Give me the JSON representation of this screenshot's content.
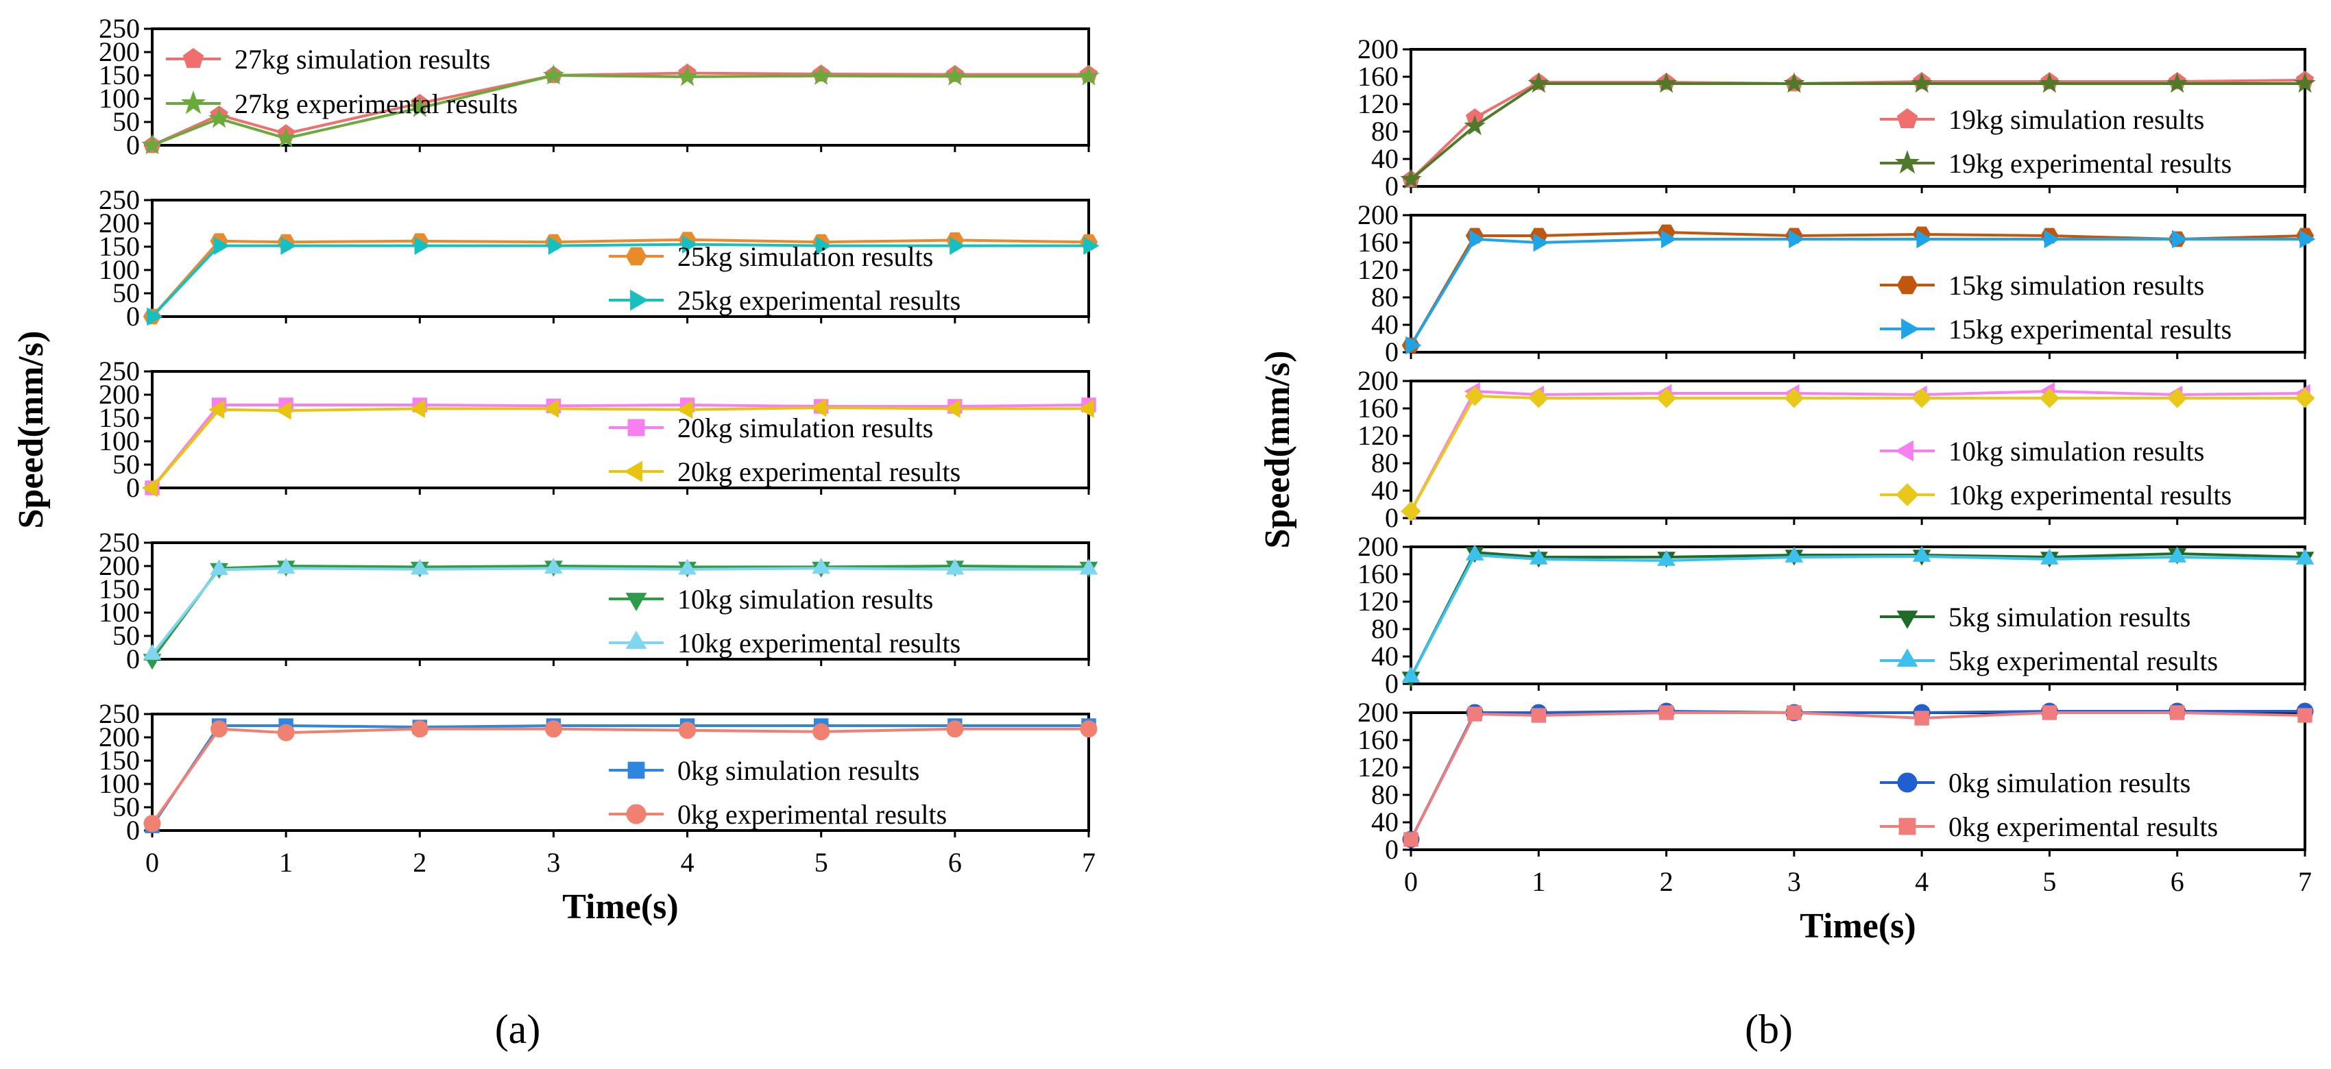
{
  "figure_labels": {
    "a": "(a)",
    "b": "(b)"
  },
  "chart_data": [
    {
      "id": "a",
      "type": "line",
      "caption": "(a)",
      "xlabel": "Time(s)",
      "ylabel": "Speed(mm/s)",
      "xlim": [
        0,
        7
      ],
      "x_ticks": [
        "0",
        "1",
        "2",
        "3",
        "4",
        "5",
        "6",
        "7"
      ],
      "x": [
        0,
        0.5,
        1,
        2,
        3,
        4,
        5,
        6,
        7
      ],
      "panels": [
        {
          "ylim": [
            0,
            250
          ],
          "y_ticks": [
            "0",
            "50",
            "100",
            "150",
            "200",
            "250"
          ],
          "legend_position": "top-left",
          "series": [
            {
              "name": "27kg simulation results",
              "color": "#ef6f6f",
              "marker": "pentagon",
              "values": [
                0,
                65,
                25,
                90,
                150,
                155,
                153,
                152,
                152
              ]
            },
            {
              "name": "27kg experimental results",
              "color": "#6aaa3a",
              "marker": "star",
              "values": [
                0,
                57,
                15,
                80,
                150,
                147,
                149,
                148,
                148
              ]
            }
          ]
        },
        {
          "ylim": [
            0,
            250
          ],
          "y_ticks": [
            "0",
            "50",
            "100",
            "150",
            "200",
            "250"
          ],
          "legend_position": "bottom-right",
          "series": [
            {
              "name": "25kg simulation results",
              "color": "#e98a2b",
              "marker": "hexagon",
              "values": [
                0,
                162,
                160,
                162,
                160,
                165,
                160,
                164,
                160
              ]
            },
            {
              "name": "25kg experimental results",
              "color": "#17c0c0",
              "marker": "triangle-right",
              "values": [
                0,
                152,
                152,
                152,
                152,
                155,
                152,
                152,
                152
              ]
            }
          ]
        },
        {
          "ylim": [
            0,
            250
          ],
          "y_ticks": [
            "0",
            "50",
            "100",
            "150",
            "200",
            "250"
          ],
          "legend_position": "bottom-right",
          "series": [
            {
              "name": "20kg simulation results",
              "color": "#f77ff0",
              "marker": "square",
              "values": [
                0,
                178,
                178,
                178,
                176,
                178,
                175,
                175,
                178
              ]
            },
            {
              "name": "20kg experimental results",
              "color": "#e6c40f",
              "marker": "triangle-left",
              "values": [
                0,
                168,
                166,
                170,
                170,
                168,
                172,
                170,
                170
              ]
            }
          ]
        },
        {
          "ylim": [
            0,
            250
          ],
          "y_ticks": [
            "0",
            "50",
            "100",
            "150",
            "200",
            "250"
          ],
          "legend_position": "bottom-right",
          "series": [
            {
              "name": "10kg simulation results",
              "color": "#2e9b4a",
              "marker": "triangle-down",
              "values": [
                0,
                195,
                200,
                198,
                200,
                198,
                198,
                200,
                198
              ]
            },
            {
              "name": "10kg experimental results",
              "color": "#7fd6ee",
              "marker": "triangle-up",
              "values": [
                10,
                192,
                195,
                193,
                195,
                193,
                195,
                193,
                193
              ]
            }
          ]
        },
        {
          "ylim": [
            0,
            250
          ],
          "y_ticks": [
            "0",
            "50",
            "100",
            "150",
            "200",
            "250"
          ],
          "legend_position": "bottom-right",
          "series": [
            {
              "name": "0kg simulation results",
              "color": "#2e86de",
              "marker": "square",
              "values": [
                10,
                225,
                225,
                222,
                225,
                225,
                225,
                225,
                225
              ]
            },
            {
              "name": "0kg experimental results",
              "color": "#f08070",
              "marker": "circle",
              "values": [
                15,
                218,
                210,
                218,
                218,
                215,
                212,
                218,
                218
              ]
            }
          ]
        }
      ]
    },
    {
      "id": "b",
      "type": "line",
      "caption": "(b)",
      "xlabel": "Time(s)",
      "ylabel": "Speed(mm/s)",
      "xlim": [
        0,
        7
      ],
      "x_ticks": [
        "0",
        "1",
        "2",
        "3",
        "4",
        "5",
        "6",
        "7"
      ],
      "x": [
        0,
        0.5,
        1,
        2,
        3,
        4,
        5,
        6,
        7
      ],
      "panels": [
        {
          "ylim": [
            0,
            200
          ],
          "y_ticks": [
            "0",
            "40",
            "80",
            "120",
            "160",
            "200"
          ],
          "legend_position": "bottom-right",
          "series": [
            {
              "name": "19kg simulation results",
              "color": "#ef6f6f",
              "marker": "pentagon",
              "values": [
                10,
                100,
                152,
                152,
                150,
                153,
                153,
                153,
                155
              ]
            },
            {
              "name": "19kg experimental results",
              "color": "#4e7a2a",
              "marker": "star",
              "values": [
                10,
                88,
                150,
                150,
                150,
                150,
                150,
                150,
                150
              ]
            }
          ]
        },
        {
          "ylim": [
            0,
            200
          ],
          "y_ticks": [
            "0",
            "40",
            "80",
            "120",
            "160",
            "200"
          ],
          "legend_position": "bottom-right",
          "series": [
            {
              "name": "15kg simulation results",
              "color": "#c2560c",
              "marker": "hexagon",
              "values": [
                10,
                170,
                170,
                175,
                170,
                172,
                170,
                165,
                170
              ]
            },
            {
              "name": "15kg experimental results",
              "color": "#20a4e8",
              "marker": "triangle-right",
              "values": [
                10,
                165,
                160,
                165,
                165,
                165,
                165,
                165,
                165
              ]
            }
          ]
        },
        {
          "ylim": [
            0,
            200
          ],
          "y_ticks": [
            "0",
            "40",
            "80",
            "120",
            "160",
            "200"
          ],
          "legend_position": "bottom-right",
          "series": [
            {
              "name": "10kg simulation results",
              "color": "#f77ff0",
              "marker": "triangle-left",
              "values": [
                10,
                185,
                180,
                182,
                182,
                180,
                185,
                180,
                182
              ]
            },
            {
              "name": "10kg experimental results",
              "color": "#e8c81a",
              "marker": "diamond",
              "values": [
                10,
                178,
                175,
                175,
                175,
                175,
                175,
                175,
                175
              ]
            }
          ]
        },
        {
          "ylim": [
            0,
            200
          ],
          "y_ticks": [
            "0",
            "40",
            "80",
            "120",
            "160",
            "200"
          ],
          "legend_position": "bottom-right",
          "series": [
            {
              "name": "5kg simulation results",
              "color": "#1f6b2a",
              "marker": "triangle-down",
              "values": [
                10,
                192,
                185,
                185,
                188,
                188,
                185,
                190,
                185
              ]
            },
            {
              "name": "5kg experimental results",
              "color": "#3cc0ee",
              "marker": "triangle-up",
              "values": [
                10,
                188,
                182,
                180,
                185,
                186,
                182,
                185,
                182
              ]
            }
          ]
        },
        {
          "ylim": [
            0,
            200
          ],
          "y_ticks": [
            "0",
            "40",
            "80",
            "120",
            "160",
            "200"
          ],
          "legend_position": "bottom-right",
          "series": [
            {
              "name": "0kg simulation results",
              "color": "#1f5fd0",
              "marker": "circle",
              "values": [
                15,
                200,
                200,
                202,
                200,
                200,
                202,
                202,
                202
              ]
            },
            {
              "name": "0kg experimental results",
              "color": "#f07c7c",
              "marker": "square",
              "values": [
                15,
                198,
                196,
                200,
                200,
                192,
                200,
                200,
                196
              ]
            }
          ]
        }
      ]
    }
  ]
}
